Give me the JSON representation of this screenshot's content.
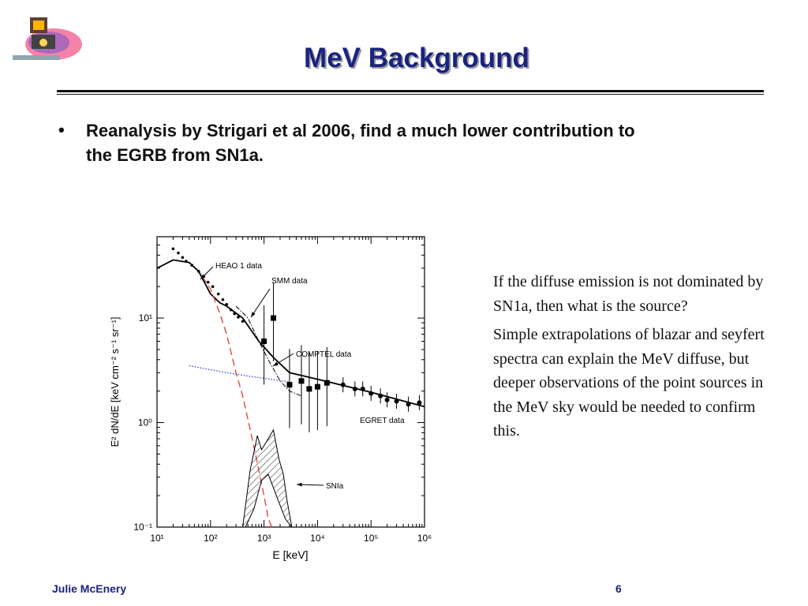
{
  "slide": {
    "title": "MeV Background",
    "bullet": "Reanalysis by Strigari et al 2006, find a much lower contribution to the EGRB from SN1a.",
    "side_paragraphs": [
      "If the diffuse emission is not dominated by SN1a, then what is the source?",
      "Simple extrapolations of blazar and seyfert spectra can explain the MeV diffuse, but deeper observations of the point sources in the MeV sky would be needed to confirm this."
    ],
    "footer_author": "Julie McEnery",
    "page_number": "6"
  },
  "chart_data": {
    "type": "scatter",
    "xlabel": "E [keV]",
    "ylabel": "E² dN/dE [keV cm⁻² s⁻¹ sr⁻¹]",
    "x_scale": "log",
    "y_scale": "log",
    "xlim": [
      10,
      1000000
    ],
    "ylim": [
      0.1,
      60
    ],
    "x_tick_labels": [
      "10¹",
      "10²",
      "10³",
      "10⁴",
      "10⁵",
      "10⁶"
    ],
    "y_tick_labels": [
      "10⁻¹",
      "10⁰",
      "10¹"
    ],
    "annotations": [
      "HEAO 1 data",
      "SMM data",
      "COMPTEL data",
      "EGRET data",
      "SNIa"
    ],
    "series": [
      {
        "name": "HEAO 1 data",
        "marker": "small-dot",
        "points": [
          [
            20,
            46
          ],
          [
            25,
            42
          ],
          [
            30,
            38
          ],
          [
            35,
            35
          ],
          [
            45,
            32
          ],
          [
            60,
            28
          ],
          [
            75,
            25
          ],
          [
            90,
            22
          ],
          [
            110,
            20
          ],
          [
            140,
            17
          ],
          [
            170,
            15
          ],
          [
            200,
            13.5
          ],
          [
            240,
            12
          ],
          [
            280,
            11
          ],
          [
            330,
            10.2
          ],
          [
            400,
            9.3
          ]
        ]
      },
      {
        "name": "SMM data",
        "marker": "dash-dot-line",
        "points": [
          [
            300,
            13
          ],
          [
            500,
            10
          ],
          [
            800,
            6
          ],
          [
            1200,
            4
          ],
          [
            2000,
            2.5
          ],
          [
            3000,
            2
          ],
          [
            5000,
            1.8
          ]
        ]
      },
      {
        "name": "COMPTEL data",
        "marker": "filled-square",
        "points": [
          [
            1000,
            6
          ],
          [
            1500,
            10
          ],
          [
            3000,
            2.3
          ],
          [
            5000,
            2.5
          ],
          [
            7000,
            2.1
          ],
          [
            10000,
            2.2
          ],
          [
            15000,
            2.4
          ]
        ]
      },
      {
        "name": "EGRET data",
        "marker": "filled-circle",
        "points": [
          [
            30000,
            2.3
          ],
          [
            50000,
            2.1
          ],
          [
            70000,
            2.1
          ],
          [
            100000,
            1.9
          ],
          [
            150000,
            1.8
          ],
          [
            200000,
            1.65
          ],
          [
            300000,
            1.6
          ],
          [
            500000,
            1.5
          ],
          [
            800000,
            1.55
          ]
        ]
      }
    ],
    "curves": [
      {
        "style": "solid",
        "color": "#000000",
        "points": [
          [
            10,
            30
          ],
          [
            20,
            36
          ],
          [
            40,
            34
          ],
          [
            60,
            28
          ],
          [
            100,
            17
          ],
          [
            150,
            14
          ],
          [
            200,
            13
          ],
          [
            400,
            10
          ],
          [
            800,
            6
          ],
          [
            1500,
            4.2
          ],
          [
            3000,
            3
          ],
          [
            10000,
            2.6
          ],
          [
            100000,
            1.95
          ],
          [
            1000000,
            1.42
          ]
        ]
      },
      {
        "style": "dashed",
        "color": "#e53935",
        "points": [
          [
            70,
            25
          ],
          [
            100,
            19
          ],
          [
            150,
            11
          ],
          [
            200,
            7
          ],
          [
            300,
            3
          ],
          [
            400,
            1.8
          ],
          [
            600,
            0.7
          ],
          [
            800,
            0.35
          ],
          [
            1000,
            0.2
          ],
          [
            1200,
            0.12
          ],
          [
            1400,
            0.1
          ]
        ]
      },
      {
        "style": "dotted",
        "color": "#3949ab",
        "points": [
          [
            40,
            3.5
          ],
          [
            100,
            3.2
          ],
          [
            300,
            2.9
          ],
          [
            1000,
            2.65
          ],
          [
            3000,
            2.45
          ]
        ]
      }
    ],
    "bands": [
      {
        "name": "SNIa",
        "style": "hatched",
        "upper": [
          [
            400,
            0.1
          ],
          [
            550,
            0.35
          ],
          [
            750,
            0.75
          ],
          [
            900,
            0.55
          ],
          [
            1100,
            0.65
          ],
          [
            1500,
            0.85
          ],
          [
            1900,
            0.45
          ],
          [
            2300,
            0.32
          ],
          [
            2700,
            0.18
          ],
          [
            3300,
            0.1
          ]
        ],
        "lower": [
          [
            3300,
            0.1
          ],
          [
            2500,
            0.12
          ],
          [
            1700,
            0.2
          ],
          [
            1200,
            0.32
          ],
          [
            900,
            0.28
          ],
          [
            650,
            0.15
          ],
          [
            450,
            0.1
          ]
        ]
      }
    ]
  }
}
